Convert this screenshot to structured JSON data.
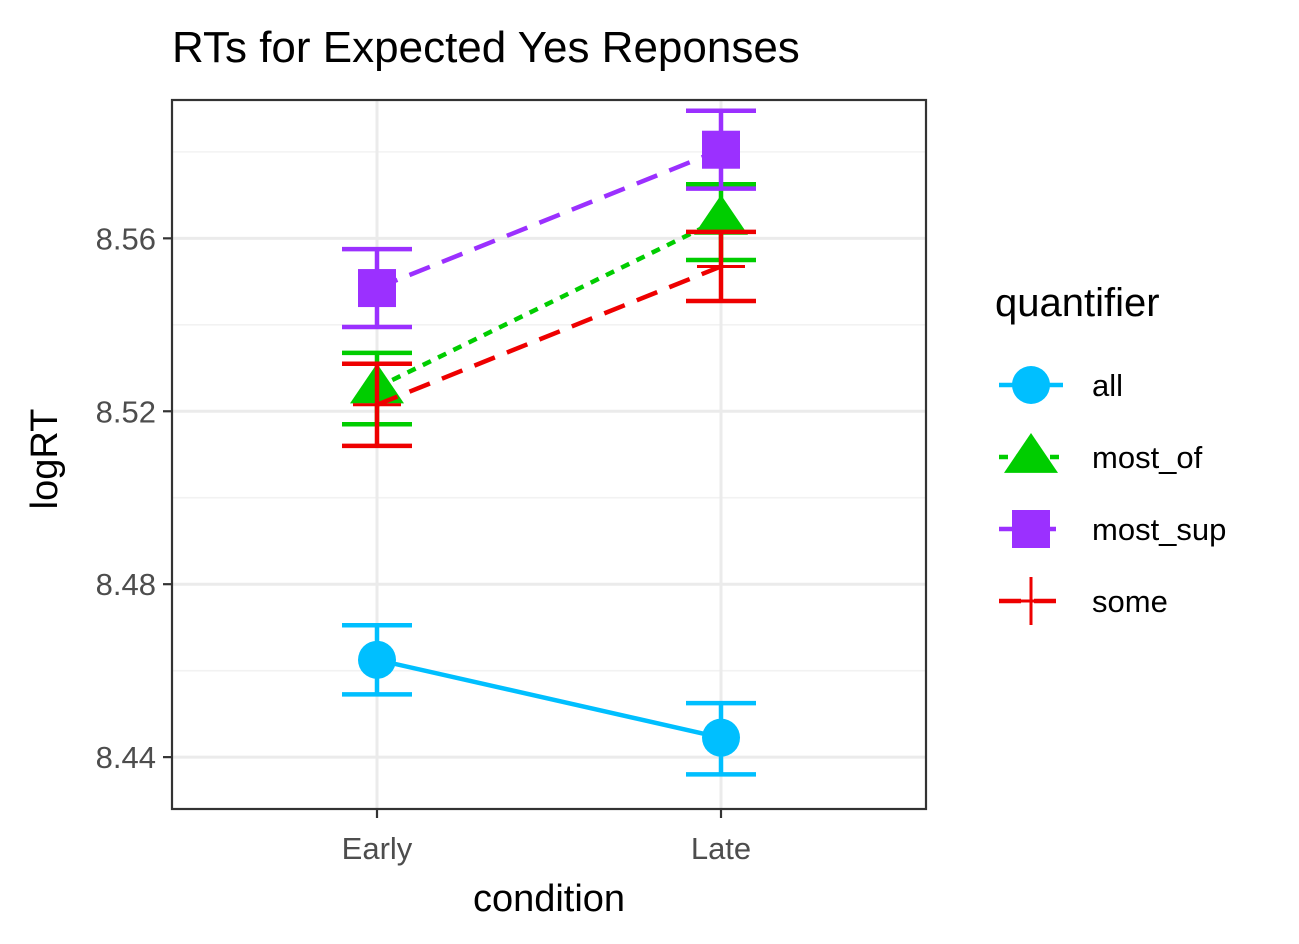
{
  "chart_data": {
    "type": "line",
    "title": "RTs for Expected Yes Reponses",
    "xlabel": "condition",
    "ylabel": "logRT",
    "categories": [
      "Early",
      "Late"
    ],
    "ylim": [
      8.428,
      8.592
    ],
    "yticks": [
      8.44,
      8.48,
      8.52,
      8.56
    ],
    "ytick_labels": [
      "8.44",
      "8.48",
      "8.52",
      "8.56"
    ],
    "grid": true,
    "legend": {
      "title": "quantifier",
      "position": "right"
    },
    "series": [
      {
        "name": "all",
        "color": "#00BFFF",
        "marker": "circle",
        "linestyle": "solid",
        "values": [
          8.4625,
          8.4445
        ],
        "error_low": [
          8.4545,
          8.436
        ],
        "error_high": [
          8.4705,
          8.4525
        ]
      },
      {
        "name": "most_of",
        "color": "#00CD00",
        "marker": "triangle",
        "linestyle": "dotted",
        "values": [
          8.5255,
          8.5645
        ],
        "error_low": [
          8.517,
          8.555
        ],
        "error_high": [
          8.5335,
          8.5725
        ]
      },
      {
        "name": "most_sup",
        "color": "#9B30FF",
        "marker": "square",
        "linestyle": "dashed",
        "values": [
          8.5485,
          8.5805
        ],
        "error_low": [
          8.5395,
          8.5715
        ],
        "error_high": [
          8.5575,
          8.5895
        ]
      },
      {
        "name": "some",
        "color": "#EE0000",
        "marker": "plus",
        "linestyle": "dashed",
        "values": [
          8.5215,
          8.5535
        ],
        "error_low": [
          8.512,
          8.5455
        ],
        "error_high": [
          8.531,
          8.5615
        ]
      }
    ]
  }
}
